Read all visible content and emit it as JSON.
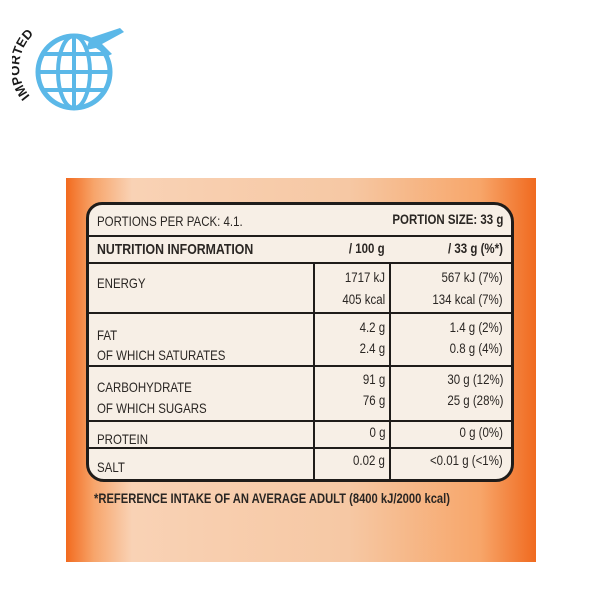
{
  "badge": {
    "text": "IMPORTED",
    "color": "#5bb8e8",
    "icon": "globe-airplane-icon"
  },
  "package_color": "#f26a1e",
  "label": {
    "portions": "PORTIONS PER PACK: 4.1.",
    "portion_size": "PORTION SIZE: 33 g",
    "title": "NUTRITION INFORMATION",
    "col1": "/ 100 g",
    "col2": "/ 33 g (%*)",
    "rows": [
      {
        "name": "ENERGY",
        "per100": "1717 kJ",
        "perPortion": "567 kJ (7%)"
      },
      {
        "name": "",
        "per100": "405 kcal",
        "perPortion": "134 kcal (7%)"
      },
      {
        "name": "FAT",
        "per100": "4.2 g",
        "perPortion": "1.4 g (2%)"
      },
      {
        "name": "OF WHICH SATURATES",
        "per100": "2.4 g",
        "perPortion": "0.8 g (4%)"
      },
      {
        "name": "CARBOHYDRATE",
        "per100": "91 g",
        "perPortion": "30 g (12%)"
      },
      {
        "name": "OF WHICH SUGARS",
        "per100": "76 g",
        "perPortion": "25 g (28%)"
      },
      {
        "name": "PROTEIN",
        "per100": "0 g",
        "perPortion": "0 g (0%)"
      },
      {
        "name": "SALT",
        "per100": "0.02 g",
        "perPortion": "<0.01 g (<1%)"
      }
    ],
    "footnote": "*REFERENCE INTAKE OF AN AVERAGE ADULT (8400 kJ/2000 kcal)"
  }
}
